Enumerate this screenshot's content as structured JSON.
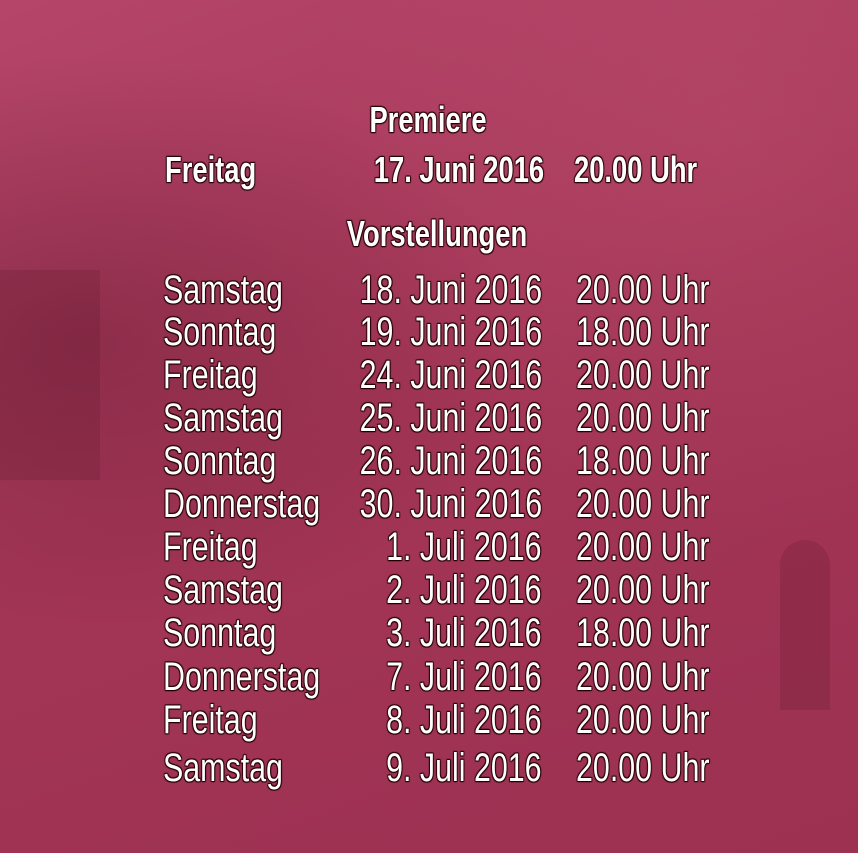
{
  "premiere": {
    "heading": "Premiere",
    "day": "Freitag",
    "date": "17. Juni 2016",
    "time": "20.00 Uhr"
  },
  "performances": {
    "heading": "Vorstellungen",
    "rows": [
      {
        "day": "Samstag",
        "date": "18. Juni 2016",
        "time": "20.00 Uhr"
      },
      {
        "day": "Sonntag",
        "date": "19. Juni 2016",
        "time": "18.00 Uhr"
      },
      {
        "day": "Freitag",
        "date": "24. Juni 2016",
        "time": "20.00 Uhr"
      },
      {
        "day": "Samstag",
        "date": "25. Juni 2016",
        "time": "20.00 Uhr"
      },
      {
        "day": "Sonntag",
        "date": "26. Juni 2016",
        "time": "18.00 Uhr"
      },
      {
        "day": "Donnerstag",
        "date": "30. Juni 2016",
        "time": "20.00 Uhr"
      },
      {
        "day": "Freitag",
        "date": "1. Juli 2016",
        "time": "20.00 Uhr"
      },
      {
        "day": "Samstag",
        "date": "2. Juli 2016",
        "time": "20.00 Uhr"
      },
      {
        "day": "Sonntag",
        "date": "3. Juli 2016",
        "time": "18.00 Uhr"
      },
      {
        "day": "Donnerstag",
        "date": "7. Juli 2016",
        "time": "20.00 Uhr"
      },
      {
        "day": "Freitag",
        "date": "8. Juli 2016",
        "time": "20.00 Uhr"
      },
      {
        "day": "Samstag",
        "date": "9. Juli 2016",
        "time": "20.00 Uhr"
      }
    ]
  },
  "colors": {
    "background": "#a8385a",
    "text": "#ffffff"
  }
}
